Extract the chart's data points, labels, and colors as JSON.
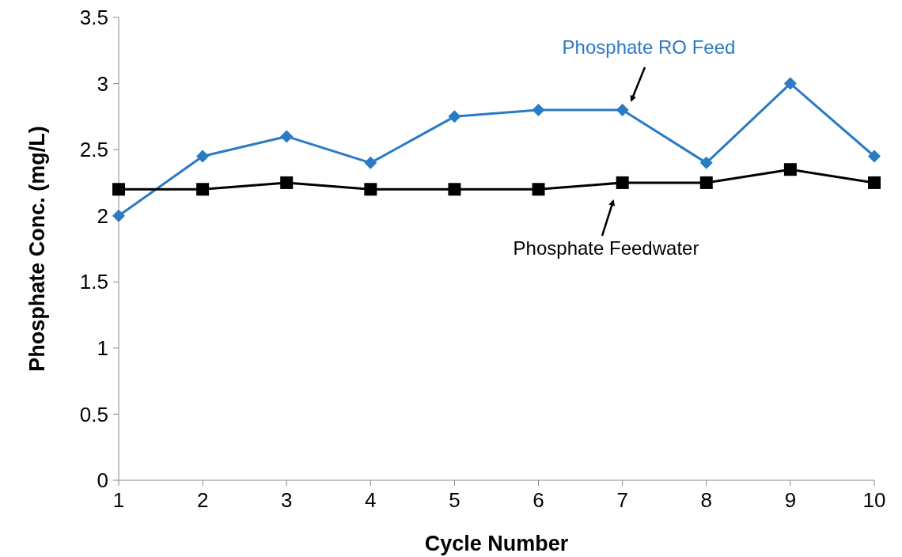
{
  "chart_data": {
    "type": "line",
    "xlabel": "Cycle Number",
    "ylabel": "Phosphate Conc. (mg/L)",
    "x": [
      1,
      2,
      3,
      4,
      5,
      6,
      7,
      8,
      9,
      10
    ],
    "xlim": [
      1,
      10
    ],
    "xticks": [
      1,
      2,
      3,
      4,
      5,
      6,
      7,
      8,
      9,
      10
    ],
    "ylim": [
      0,
      3.5
    ],
    "yticks": [
      0,
      0.5,
      1,
      1.5,
      2,
      2.5,
      3,
      3.5
    ],
    "grid": false,
    "line_style": "solid",
    "series": [
      {
        "name": "Phosphate RO Feed",
        "color": "#2a7ac4",
        "marker": "diamond",
        "values": [
          2.0,
          2.45,
          2.6,
          2.4,
          2.75,
          2.8,
          2.8,
          2.4,
          3.0,
          2.45
        ]
      },
      {
        "name": "Phosphate Feedwater",
        "color": "#000000",
        "marker": "square",
        "values": [
          2.2,
          2.2,
          2.25,
          2.2,
          2.2,
          2.2,
          2.25,
          2.25,
          2.35,
          2.25
        ]
      }
    ]
  }
}
